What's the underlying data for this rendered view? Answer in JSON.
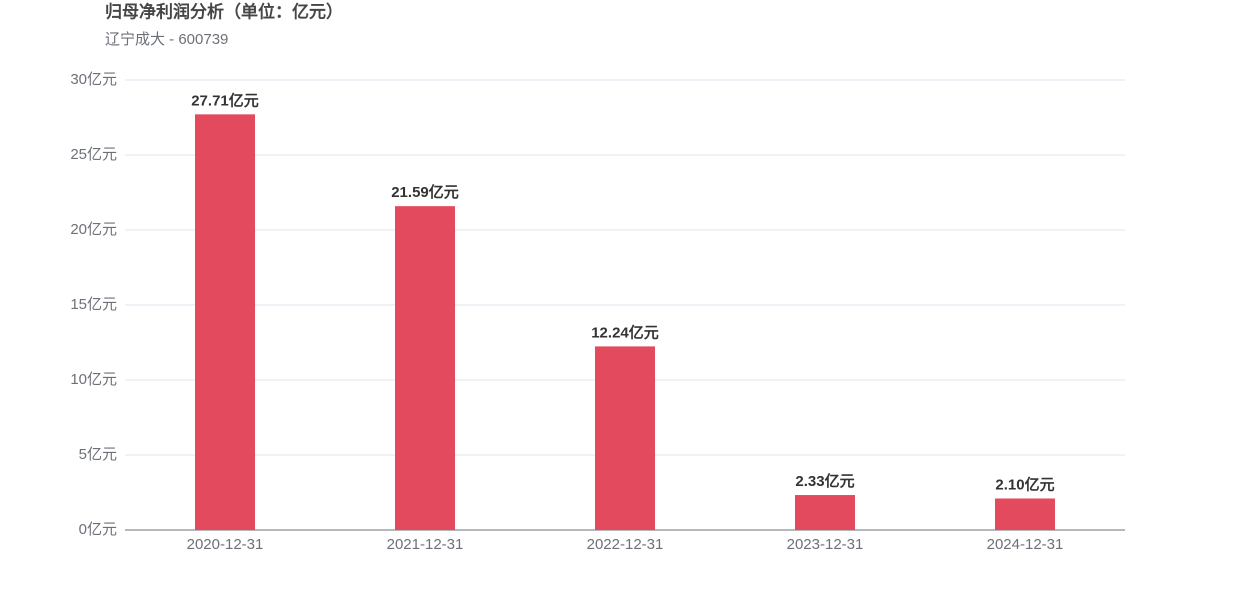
{
  "chart_data": {
    "type": "bar",
    "title": "归母净利润分析（单位：亿元）",
    "subtitle": "辽宁成大 - 600739",
    "categories": [
      "2020-12-31",
      "2021-12-31",
      "2022-12-31",
      "2023-12-31",
      "2024-12-31"
    ],
    "values": [
      27.71,
      21.59,
      12.24,
      2.33,
      2.1
    ],
    "value_labels": [
      "27.71亿元",
      "21.59亿元",
      "12.24亿元",
      "2.33亿元",
      "2.10亿元"
    ],
    "color": "#e34a5e",
    "ylim": [
      0,
      30
    ],
    "yticks": [
      {
        "value": 0,
        "label": "0亿元"
      },
      {
        "value": 5,
        "label": "5亿元"
      },
      {
        "value": 10,
        "label": "10亿元"
      },
      {
        "value": 15,
        "label": "15亿元"
      },
      {
        "value": 20,
        "label": "20亿元"
      },
      {
        "value": 25,
        "label": "25亿元"
      },
      {
        "value": 30,
        "label": "30亿元"
      }
    ],
    "grid": true
  }
}
